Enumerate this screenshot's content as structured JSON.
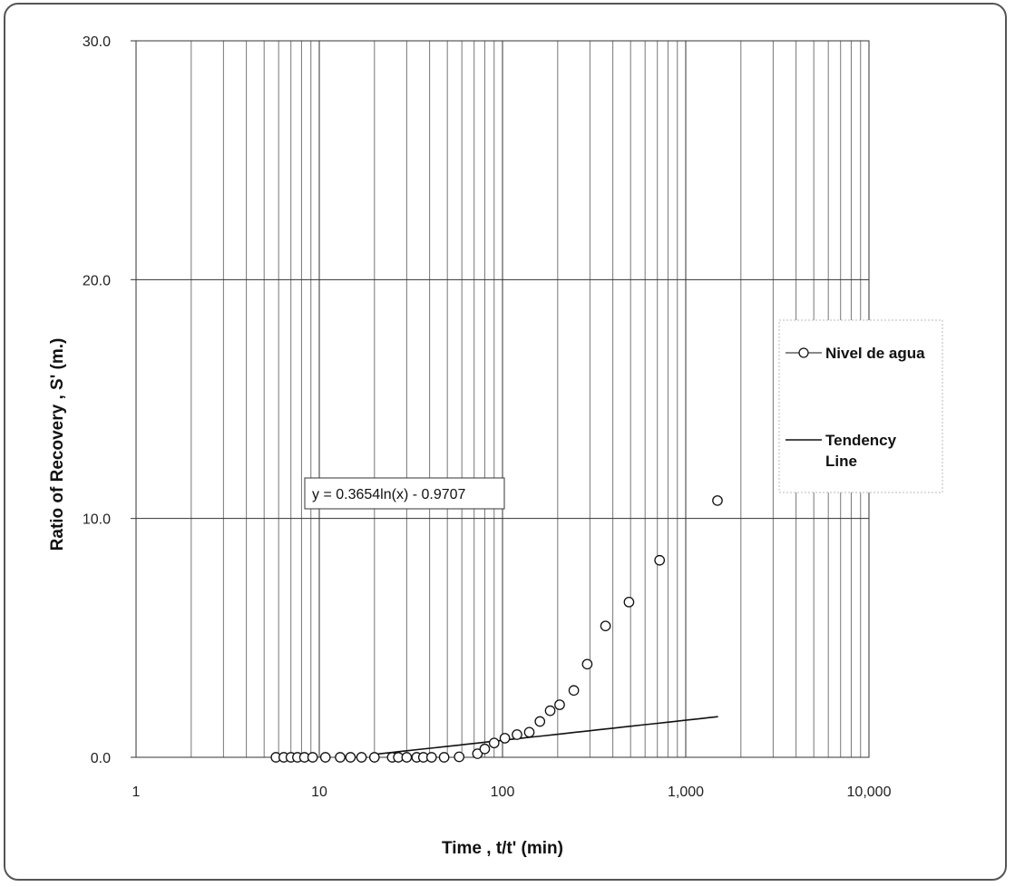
{
  "chart_data": {
    "type": "scatter",
    "title": "",
    "xlabel": "Time , t/t' (min)",
    "ylabel": "Ratio of Recovery , S' (m.)",
    "x_scale": "log",
    "xlim": [
      1,
      10000
    ],
    "ylim": [
      0,
      30
    ],
    "x_ticks": [
      1,
      10,
      100,
      1000,
      10000
    ],
    "x_tick_labels": [
      "1",
      "10",
      "100",
      "1,000",
      "10,000"
    ],
    "y_ticks": [
      0,
      10,
      20,
      30
    ],
    "y_tick_labels": [
      "0.0",
      "10.0",
      "20.0",
      "30.0"
    ],
    "grid": true,
    "legend_position": "right",
    "equation_label": "y = 0.3654ln(x) - 0.9707",
    "series": [
      {
        "name": "Nivel de agua",
        "marker": "open-circle",
        "color": "#111111",
        "points": [
          [
            5.8,
            0.0
          ],
          [
            6.4,
            0.0
          ],
          [
            7.0,
            0.0
          ],
          [
            7.6,
            0.0
          ],
          [
            8.3,
            0.0
          ],
          [
            9.2,
            0.0
          ],
          [
            10.8,
            0.0
          ],
          [
            13.0,
            0.0
          ],
          [
            14.8,
            0.0
          ],
          [
            17.0,
            0.0
          ],
          [
            20.0,
            0.0
          ],
          [
            25.0,
            0.0
          ],
          [
            27.0,
            0.0
          ],
          [
            30.0,
            0.0
          ],
          [
            34.0,
            0.0
          ],
          [
            37.0,
            0.0
          ],
          [
            41.0,
            0.0
          ],
          [
            48.0,
            0.0
          ],
          [
            58.0,
            0.02
          ],
          [
            73.0,
            0.15
          ],
          [
            80.0,
            0.35
          ],
          [
            90.0,
            0.6
          ],
          [
            103.0,
            0.8
          ],
          [
            120.0,
            0.95
          ],
          [
            140.0,
            1.05
          ],
          [
            160.0,
            1.5
          ],
          [
            182.0,
            1.95
          ],
          [
            205.0,
            2.2
          ],
          [
            245.0,
            2.8
          ],
          [
            290.0,
            3.9
          ],
          [
            365.0,
            5.5
          ],
          [
            490.0,
            6.5
          ],
          [
            720.0,
            8.25
          ],
          [
            1490.0,
            10.75
          ]
        ]
      },
      {
        "name": "Tendency Line",
        "marker": "line",
        "color": "#111111",
        "equation": {
          "a": 0.3654,
          "b": -0.9707
        },
        "x_range": [
          20,
          1500
        ]
      }
    ]
  }
}
